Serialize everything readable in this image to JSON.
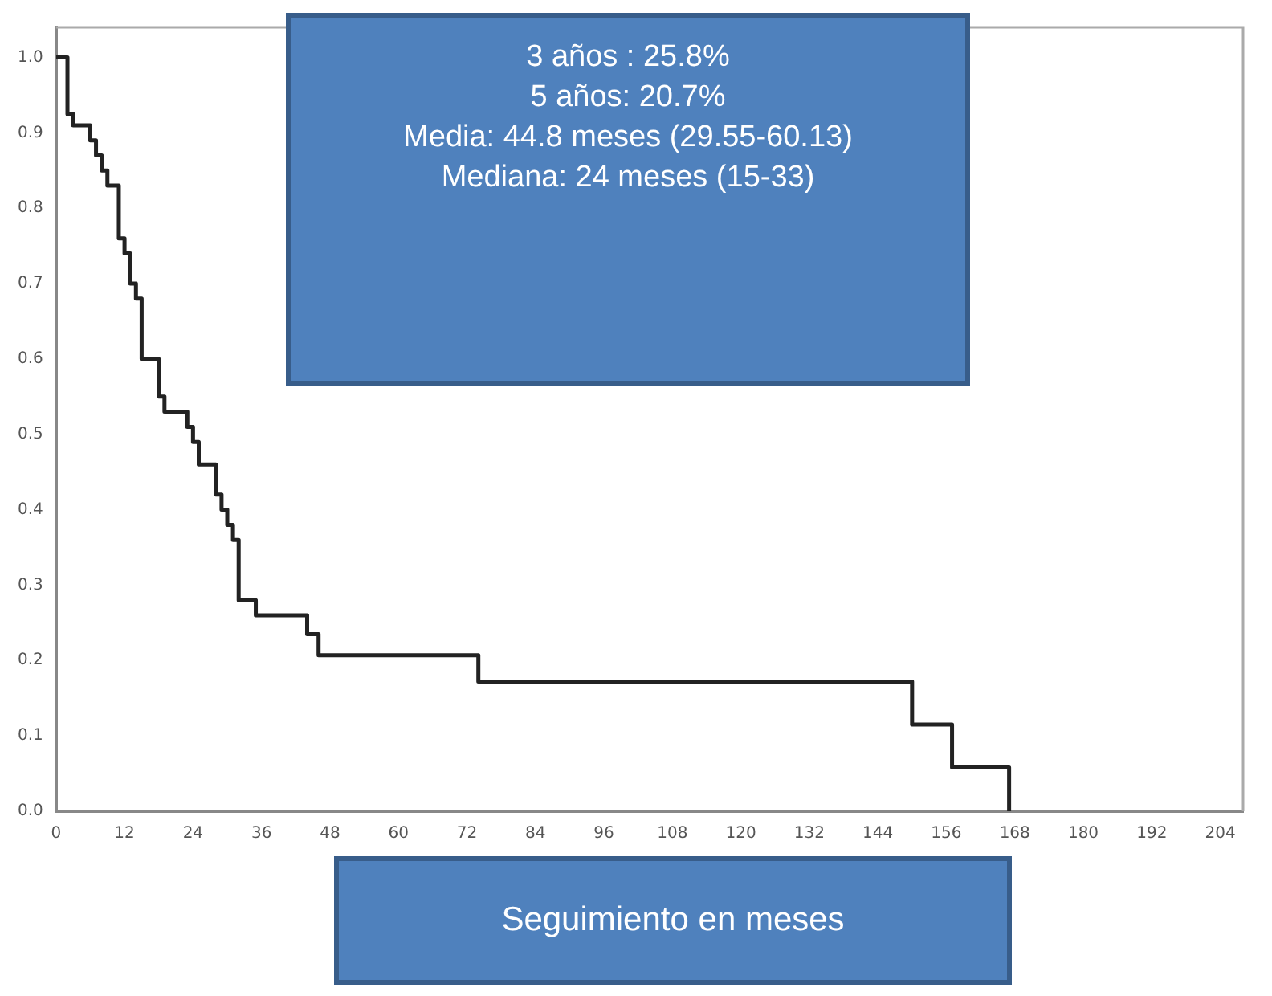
{
  "chart_data": {
    "type": "step",
    "x": [
      0,
      2,
      3,
      6,
      7,
      8,
      9,
      11,
      12,
      13,
      14,
      15,
      18,
      19,
      23,
      24,
      25,
      28,
      29,
      30,
      31,
      32,
      35,
      44,
      46,
      74,
      150,
      157,
      167
    ],
    "series": [
      {
        "color": "#222222",
        "values": [
          1.0,
          0.925,
          0.91,
          0.89,
          0.87,
          0.85,
          0.83,
          0.76,
          0.74,
          0.7,
          0.68,
          0.6,
          0.55,
          0.53,
          0.51,
          0.49,
          0.46,
          0.42,
          0.4,
          0.38,
          0.36,
          0.28,
          0.26,
          0.235,
          0.207,
          0.172,
          0.115,
          0.058,
          0.0
        ]
      }
    ],
    "xlabel": "Seguimiento en meses",
    "annotations": [
      "3 años : 25.8%",
      "5 años: 20.7%",
      "Media: 44.8 meses (29.55-60.13)",
      "Mediana: 24 meses (15-33)"
    ],
    "xlim": [
      0,
      208
    ],
    "ylim": [
      0,
      1.04
    ],
    "xticks": [
      0,
      12,
      24,
      36,
      48,
      60,
      72,
      84,
      96,
      108,
      120,
      132,
      144,
      156,
      168,
      180,
      192,
      204
    ],
    "yticks": [
      {
        "value": 0,
        "label": "0.0"
      },
      {
        "value": 0.1,
        "label": "0.1"
      },
      {
        "value": 0.2,
        "label": "0.2"
      },
      {
        "value": 0.3,
        "label": "0.3"
      },
      {
        "value": 0.4,
        "label": "0.4"
      },
      {
        "value": 0.5,
        "label": "0.5"
      },
      {
        "value": 0.6,
        "label": "0.6"
      },
      {
        "value": 0.7,
        "label": "0.7"
      },
      {
        "value": 0.8,
        "label": "0.8"
      },
      {
        "value": 0.9,
        "label": "0.9"
      },
      {
        "value": 1,
        "label": "1.0"
      }
    ],
    "grid": false,
    "legend": false,
    "marker": "none",
    "line_style": "solid"
  }
}
